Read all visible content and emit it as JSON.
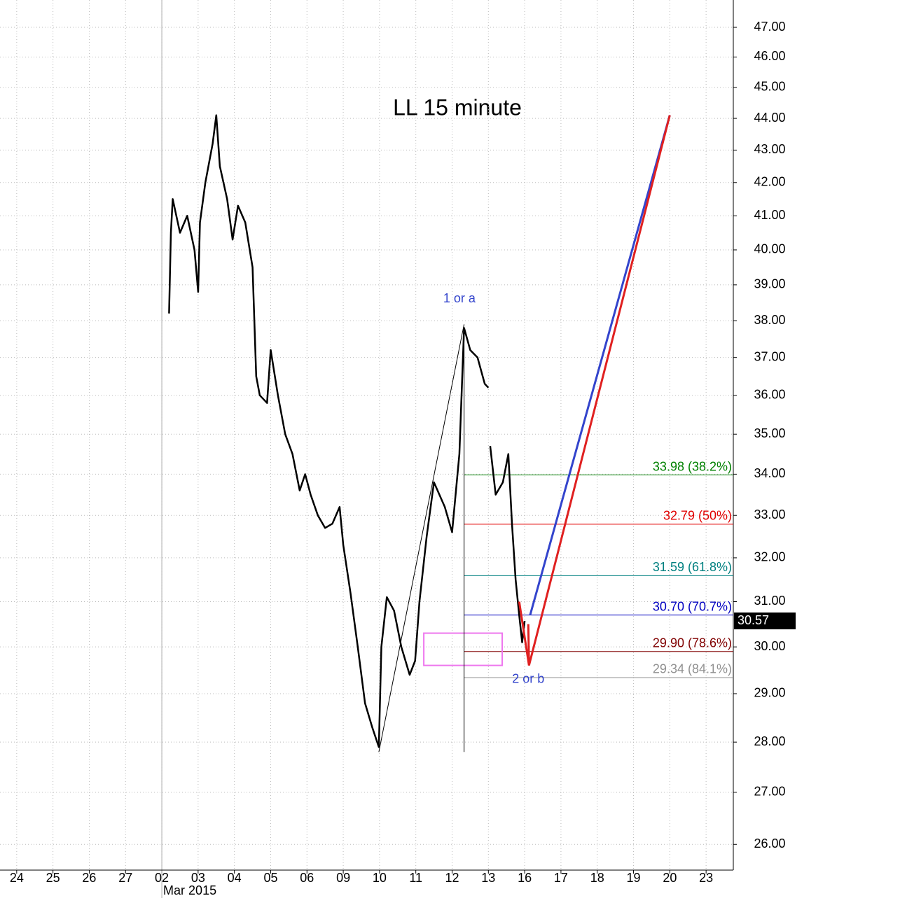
{
  "chart_data": {
    "type": "line",
    "title": "LL 15 minute",
    "log_scale": true,
    "grid": true,
    "ylim": [
      25.52,
      47.94
    ],
    "yticks": [
      {
        "value": 26,
        "label": "26.00"
      },
      {
        "value": 27,
        "label": "27.00"
      },
      {
        "value": 28,
        "label": "28.00"
      },
      {
        "value": 29,
        "label": "29.00"
      },
      {
        "value": 30,
        "label": "30.00"
      },
      {
        "value": 31,
        "label": "31.00"
      },
      {
        "value": 32,
        "label": "32.00"
      },
      {
        "value": 33,
        "label": "33.00"
      },
      {
        "value": 34,
        "label": "34.00"
      },
      {
        "value": 35,
        "label": "35.00"
      },
      {
        "value": 36,
        "label": "36.00"
      },
      {
        "value": 37,
        "label": "37.00"
      },
      {
        "value": 38,
        "label": "38.00"
      },
      {
        "value": 39,
        "label": "39.00"
      },
      {
        "value": 40,
        "label": "40.00"
      },
      {
        "value": 41,
        "label": "41.00"
      },
      {
        "value": 42,
        "label": "42.00"
      },
      {
        "value": 43,
        "label": "43.00"
      },
      {
        "value": 44,
        "label": "44.00"
      },
      {
        "value": 45,
        "label": "45.00"
      },
      {
        "value": 46,
        "label": "46.00"
      },
      {
        "value": 47,
        "label": "47.00"
      }
    ],
    "xlim": [
      -0.46,
      19.75
    ],
    "xticks": [
      {
        "value": 0,
        "label": "24"
      },
      {
        "value": 1,
        "label": "25"
      },
      {
        "value": 2,
        "label": "26"
      },
      {
        "value": 3,
        "label": "27"
      },
      {
        "value": 4,
        "label": "02"
      },
      {
        "value": 5,
        "label": "03"
      },
      {
        "value": 6,
        "label": "04"
      },
      {
        "value": 7,
        "label": "05"
      },
      {
        "value": 8,
        "label": "06"
      },
      {
        "value": 9,
        "label": "09"
      },
      {
        "value": 10,
        "label": "10"
      },
      {
        "value": 11,
        "label": "11"
      },
      {
        "value": 12,
        "label": "12"
      },
      {
        "value": 13,
        "label": "13"
      },
      {
        "value": 14,
        "label": "16"
      },
      {
        "value": 15,
        "label": "17"
      },
      {
        "value": 16,
        "label": "18"
      },
      {
        "value": 17,
        "label": "19"
      },
      {
        "value": 18,
        "label": "20"
      },
      {
        "value": 19,
        "label": "23"
      }
    ],
    "month_label": {
      "value": 4,
      "label": "Mar 2015"
    },
    "series": [
      {
        "color": "#000000",
        "x": [
          4.2,
          4.25,
          4.3,
          4.5,
          4.7,
          4.9,
          5.0,
          5.05,
          5.2,
          5.4,
          5.5,
          5.6,
          5.8,
          5.95,
          6.1,
          6.3,
          6.5,
          6.6,
          6.7,
          6.9,
          7.0,
          7.2,
          7.4,
          7.6,
          7.8,
          7.95,
          8.1,
          8.3,
          8.5,
          8.7,
          8.9,
          9.0,
          9.2,
          9.4,
          9.6,
          9.8,
          9.98,
          10.05,
          10.2,
          10.4,
          10.6,
          10.83,
          10.98,
          11.1,
          11.3,
          11.5,
          11.8,
          12.0,
          12.2,
          12.3,
          12.33,
          12.5,
          12.7,
          12.9,
          13.0,
          13.02,
          13.05,
          13.2,
          13.4,
          13.55,
          13.65,
          13.75,
          13.85,
          13.93,
          14.0
        ],
        "values": [
          38.2,
          40.5,
          41.5,
          40.5,
          41,
          40,
          38.8,
          40.8,
          42,
          43.2,
          44.1,
          42.5,
          41.5,
          40.3,
          41.3,
          40.8,
          39.5,
          36.5,
          36,
          35.8,
          37.2,
          36,
          35,
          34.5,
          33.6,
          34,
          33.5,
          33,
          32.7,
          32.8,
          33.2,
          32.3,
          31.2,
          30,
          28.8,
          28.3,
          27.9,
          30,
          31.1,
          30.8,
          30,
          29.4,
          29.7,
          31,
          32.5,
          33.8,
          33.2,
          32.6,
          34.5,
          37,
          37.8,
          37.2,
          37,
          36.3,
          36.2,
          null,
          34.7,
          33.5,
          33.8,
          34.5,
          32.8,
          31.5,
          30.7,
          30.1,
          30.57
        ]
      }
    ],
    "last_price": {
      "value": 30.57,
      "label": "30.57"
    },
    "fib_levels": [
      {
        "value": 33.98,
        "label": "33.98 (38.2%)",
        "color": "#008000"
      },
      {
        "value": 32.79,
        "label": "32.79 (50%)",
        "color": "#e00000"
      },
      {
        "value": 31.59,
        "label": "31.59 (61.8%)",
        "color": "#008080"
      },
      {
        "value": 30.7,
        "label": "30.70 (70.7%)",
        "color": "#0000c0"
      },
      {
        "value": 29.9,
        "label": "29.90 (78.6%)",
        "color": "#800000"
      },
      {
        "value": 29.34,
        "label": "29.34 (84.1%)",
        "color": "#909090"
      }
    ],
    "fib_start": 12.33,
    "wave_lines": [
      {
        "color": "#000000",
        "x": [
          9.98,
          12.33
        ],
        "y": [
          27.8,
          37.9
        ]
      },
      {
        "color": "#000000",
        "x": [
          12.33,
          12.33
        ],
        "y": [
          37.8,
          27.8
        ]
      },
      {
        "color": "#3344cc",
        "x": [
          14.15,
          18.0
        ],
        "y": [
          30.7,
          44.1
        ]
      },
      {
        "color": "#e02020",
        "x": [
          14.12,
          18.0
        ],
        "y": [
          29.6,
          44.1
        ]
      },
      {
        "color": "#e02020",
        "x": [
          13.85,
          14.12,
          14.1
        ],
        "y": [
          31.0,
          29.6,
          30.5
        ]
      }
    ],
    "zone": {
      "x": [
        11.22,
        13.38
      ],
      "y": [
        29.6,
        30.3
      ],
      "color": "#ee77ee"
    },
    "annotations": [
      {
        "text": "1 or a",
        "x": 12.2,
        "y": 38.6,
        "color": "#3344cc"
      },
      {
        "text": "2 or b",
        "x": 14.1,
        "y": 29.3,
        "color": "#3344cc"
      }
    ]
  }
}
